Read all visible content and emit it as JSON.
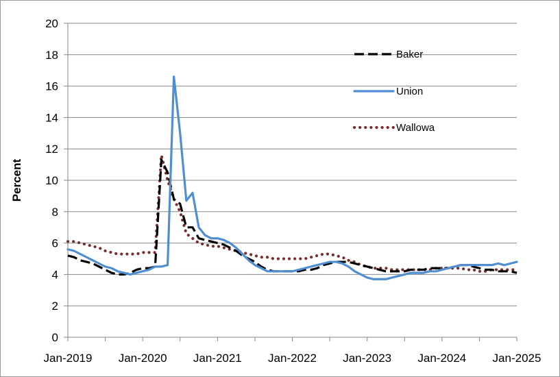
{
  "chart_data": {
    "type": "line",
    "title": "",
    "xlabel": "",
    "ylabel": "Percent",
    "ylim": [
      0,
      20
    ],
    "yticks": [
      "0",
      "2",
      "4",
      "6",
      "8",
      "10",
      "12",
      "14",
      "16",
      "18",
      "20"
    ],
    "xlim": [
      "2019-01",
      "2025-01"
    ],
    "xticks": [
      "Jan-2019",
      "Jan-2020",
      "Jan-2021",
      "Jan-2022",
      "Jan-2023",
      "Jan-2024",
      "Jan-2025"
    ],
    "grid": "horizontal",
    "legend_position": "top-right",
    "series": [
      {
        "name": "Baker",
        "color": "#000000",
        "style": "dashed",
        "points": [
          [
            "2019-01",
            5.2
          ],
          [
            "2019-02",
            5.1
          ],
          [
            "2019-03",
            4.9
          ],
          [
            "2019-04",
            4.8
          ],
          [
            "2019-05",
            4.7
          ],
          [
            "2019-06",
            4.5
          ],
          [
            "2019-07",
            4.3
          ],
          [
            "2019-08",
            4.1
          ],
          [
            "2019-09",
            4.0
          ],
          [
            "2019-10",
            4.0
          ],
          [
            "2019-11",
            4.1
          ],
          [
            "2019-12",
            4.3
          ],
          [
            "2020-01",
            4.4
          ],
          [
            "2020-02",
            4.4
          ],
          [
            "2020-03",
            4.5
          ],
          [
            "2020-04",
            11.3
          ],
          [
            "2020-05",
            10.5
          ],
          [
            "2020-06",
            8.8
          ],
          [
            "2020-07",
            8.5
          ],
          [
            "2020-08",
            7.0
          ],
          [
            "2020-09",
            7.0
          ],
          [
            "2020-10",
            6.3
          ],
          [
            "2020-11",
            6.2
          ],
          [
            "2020-12",
            6.1
          ],
          [
            "2021-01",
            6.0
          ],
          [
            "2021-02",
            5.9
          ],
          [
            "2021-03",
            5.7
          ],
          [
            "2021-04",
            5.5
          ],
          [
            "2021-05",
            5.2
          ],
          [
            "2021-06",
            5.0
          ],
          [
            "2021-07",
            4.8
          ],
          [
            "2021-08",
            4.5
          ],
          [
            "2021-09",
            4.3
          ],
          [
            "2021-10",
            4.2
          ],
          [
            "2021-11",
            4.2
          ],
          [
            "2021-12",
            4.2
          ],
          [
            "2022-01",
            4.2
          ],
          [
            "2022-02",
            4.2
          ],
          [
            "2022-03",
            4.3
          ],
          [
            "2022-04",
            4.3
          ],
          [
            "2022-05",
            4.4
          ],
          [
            "2022-06",
            4.6
          ],
          [
            "2022-07",
            4.7
          ],
          [
            "2022-08",
            4.8
          ],
          [
            "2022-09",
            4.8
          ],
          [
            "2022-10",
            4.8
          ],
          [
            "2022-11",
            4.7
          ],
          [
            "2022-12",
            4.6
          ],
          [
            "2023-01",
            4.5
          ],
          [
            "2023-02",
            4.4
          ],
          [
            "2023-03",
            4.3
          ],
          [
            "2023-04",
            4.2
          ],
          [
            "2023-05",
            4.2
          ],
          [
            "2023-06",
            4.2
          ],
          [
            "2023-07",
            4.2
          ],
          [
            "2023-08",
            4.3
          ],
          [
            "2023-09",
            4.3
          ],
          [
            "2023-10",
            4.3
          ],
          [
            "2023-11",
            4.4
          ],
          [
            "2023-12",
            4.4
          ],
          [
            "2024-01",
            4.4
          ],
          [
            "2024-02",
            4.4
          ],
          [
            "2024-03",
            4.5
          ],
          [
            "2024-04",
            4.6
          ],
          [
            "2024-05",
            4.6
          ],
          [
            "2024-06",
            4.5
          ],
          [
            "2024-07",
            4.4
          ],
          [
            "2024-08",
            4.3
          ],
          [
            "2024-09",
            4.3
          ],
          [
            "2024-10",
            4.2
          ],
          [
            "2024-11",
            4.2
          ],
          [
            "2024-12",
            4.2
          ],
          [
            "2025-01",
            4.1
          ]
        ]
      },
      {
        "name": "Union",
        "color": "#4f8ed0",
        "style": "solid",
        "points": [
          [
            "2019-01",
            5.6
          ],
          [
            "2019-02",
            5.5
          ],
          [
            "2019-03",
            5.3
          ],
          [
            "2019-04",
            5.1
          ],
          [
            "2019-05",
            4.9
          ],
          [
            "2019-06",
            4.7
          ],
          [
            "2019-07",
            4.5
          ],
          [
            "2019-08",
            4.4
          ],
          [
            "2019-09",
            4.2
          ],
          [
            "2019-10",
            4.1
          ],
          [
            "2019-11",
            4.0
          ],
          [
            "2019-12",
            4.1
          ],
          [
            "2020-01",
            4.2
          ],
          [
            "2020-02",
            4.3
          ],
          [
            "2020-03",
            4.5
          ],
          [
            "2020-04",
            4.5
          ],
          [
            "2020-05",
            4.6
          ],
          [
            "2020-06",
            16.6
          ],
          [
            "2020-07",
            13.0
          ],
          [
            "2020-08",
            8.7
          ],
          [
            "2020-09",
            9.2
          ],
          [
            "2020-10",
            7.0
          ],
          [
            "2020-11",
            6.5
          ],
          [
            "2020-12",
            6.3
          ],
          [
            "2021-01",
            6.3
          ],
          [
            "2021-02",
            6.2
          ],
          [
            "2021-03",
            6.0
          ],
          [
            "2021-04",
            5.7
          ],
          [
            "2021-05",
            5.3
          ],
          [
            "2021-06",
            4.9
          ],
          [
            "2021-07",
            4.6
          ],
          [
            "2021-08",
            4.4
          ],
          [
            "2021-09",
            4.2
          ],
          [
            "2021-10",
            4.2
          ],
          [
            "2021-11",
            4.2
          ],
          [
            "2021-12",
            4.2
          ],
          [
            "2022-01",
            4.2
          ],
          [
            "2022-02",
            4.3
          ],
          [
            "2022-03",
            4.4
          ],
          [
            "2022-04",
            4.5
          ],
          [
            "2022-05",
            4.6
          ],
          [
            "2022-06",
            4.7
          ],
          [
            "2022-07",
            4.8
          ],
          [
            "2022-08",
            4.8
          ],
          [
            "2022-09",
            4.7
          ],
          [
            "2022-10",
            4.5
          ],
          [
            "2022-11",
            4.2
          ],
          [
            "2022-12",
            4.0
          ],
          [
            "2023-01",
            3.8
          ],
          [
            "2023-02",
            3.7
          ],
          [
            "2023-03",
            3.7
          ],
          [
            "2023-04",
            3.7
          ],
          [
            "2023-05",
            3.8
          ],
          [
            "2023-06",
            3.9
          ],
          [
            "2023-07",
            4.0
          ],
          [
            "2023-08",
            4.1
          ],
          [
            "2023-09",
            4.1
          ],
          [
            "2023-10",
            4.1
          ],
          [
            "2023-11",
            4.2
          ],
          [
            "2023-12",
            4.2
          ],
          [
            "2024-01",
            4.3
          ],
          [
            "2024-02",
            4.4
          ],
          [
            "2024-03",
            4.5
          ],
          [
            "2024-04",
            4.6
          ],
          [
            "2024-05",
            4.6
          ],
          [
            "2024-06",
            4.6
          ],
          [
            "2024-07",
            4.6
          ],
          [
            "2024-08",
            4.6
          ],
          [
            "2024-09",
            4.6
          ],
          [
            "2024-10",
            4.7
          ],
          [
            "2024-11",
            4.6
          ],
          [
            "2024-12",
            4.7
          ],
          [
            "2025-01",
            4.8
          ]
        ]
      },
      {
        "name": "Wallowa",
        "color": "#7b2d2d",
        "style": "dotted",
        "points": [
          [
            "2019-01",
            6.1
          ],
          [
            "2019-02",
            6.1
          ],
          [
            "2019-03",
            6.0
          ],
          [
            "2019-04",
            5.9
          ],
          [
            "2019-05",
            5.8
          ],
          [
            "2019-06",
            5.7
          ],
          [
            "2019-07",
            5.5
          ],
          [
            "2019-08",
            5.4
          ],
          [
            "2019-09",
            5.3
          ],
          [
            "2019-10",
            5.3
          ],
          [
            "2019-11",
            5.3
          ],
          [
            "2019-12",
            5.3
          ],
          [
            "2020-01",
            5.4
          ],
          [
            "2020-02",
            5.4
          ],
          [
            "2020-03",
            5.4
          ],
          [
            "2020-04",
            11.6
          ],
          [
            "2020-05",
            10.0
          ],
          [
            "2020-06",
            8.8
          ],
          [
            "2020-07",
            8.0
          ],
          [
            "2020-08",
            6.6
          ],
          [
            "2020-09",
            6.3
          ],
          [
            "2020-10",
            6.0
          ],
          [
            "2020-11",
            5.9
          ],
          [
            "2020-12",
            5.8
          ],
          [
            "2021-01",
            5.8
          ],
          [
            "2021-02",
            5.7
          ],
          [
            "2021-03",
            5.6
          ],
          [
            "2021-04",
            5.5
          ],
          [
            "2021-05",
            5.4
          ],
          [
            "2021-06",
            5.3
          ],
          [
            "2021-07",
            5.2
          ],
          [
            "2021-08",
            5.1
          ],
          [
            "2021-09",
            5.1
          ],
          [
            "2021-10",
            5.0
          ],
          [
            "2021-11",
            5.0
          ],
          [
            "2021-12",
            5.0
          ],
          [
            "2022-01",
            5.0
          ],
          [
            "2022-02",
            5.0
          ],
          [
            "2022-03",
            5.0
          ],
          [
            "2022-04",
            5.1
          ],
          [
            "2022-05",
            5.2
          ],
          [
            "2022-06",
            5.3
          ],
          [
            "2022-07",
            5.3
          ],
          [
            "2022-08",
            5.2
          ],
          [
            "2022-09",
            5.1
          ],
          [
            "2022-10",
            4.9
          ],
          [
            "2022-11",
            4.8
          ],
          [
            "2022-12",
            4.6
          ],
          [
            "2023-01",
            4.5
          ],
          [
            "2023-02",
            4.4
          ],
          [
            "2023-03",
            4.4
          ],
          [
            "2023-04",
            4.4
          ],
          [
            "2023-05",
            4.3
          ],
          [
            "2023-06",
            4.3
          ],
          [
            "2023-07",
            4.3
          ],
          [
            "2023-08",
            4.3
          ],
          [
            "2023-09",
            4.3
          ],
          [
            "2023-10",
            4.3
          ],
          [
            "2023-11",
            4.3
          ],
          [
            "2023-12",
            4.4
          ],
          [
            "2024-01",
            4.4
          ],
          [
            "2024-02",
            4.4
          ],
          [
            "2024-03",
            4.4
          ],
          [
            "2024-04",
            4.4
          ],
          [
            "2024-05",
            4.3
          ],
          [
            "2024-06",
            4.3
          ],
          [
            "2024-07",
            4.2
          ],
          [
            "2024-08",
            4.2
          ],
          [
            "2024-09",
            4.3
          ],
          [
            "2024-10",
            4.3
          ],
          [
            "2024-11",
            4.3
          ],
          [
            "2024-12",
            4.3
          ],
          [
            "2025-01",
            4.3
          ]
        ]
      }
    ]
  }
}
